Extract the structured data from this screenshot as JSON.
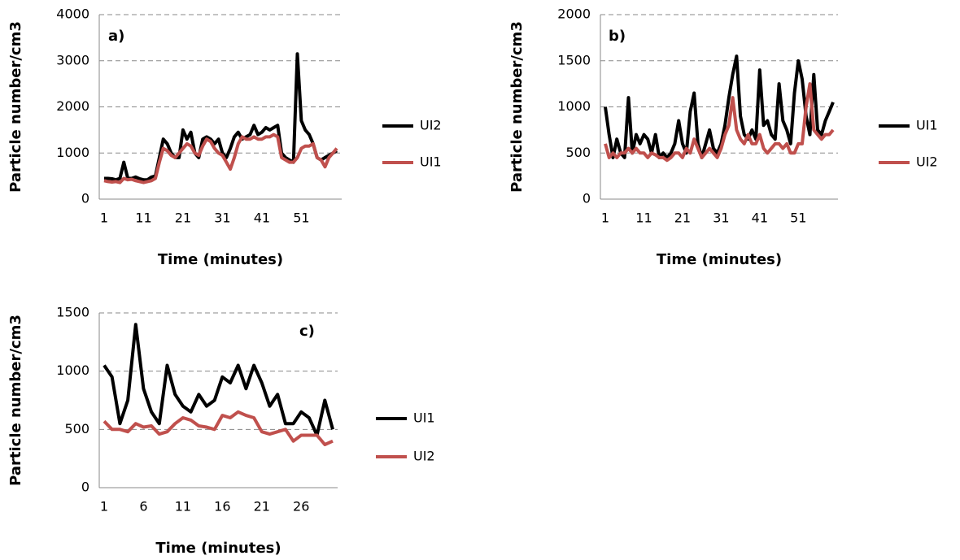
{
  "chart_data": [
    {
      "type": "line",
      "annotation": "a)",
      "xlabel": "Time (minutes)",
      "ylabel": "Particle number/cm3",
      "x": [
        1,
        2,
        3,
        4,
        5,
        6,
        7,
        8,
        9,
        10,
        11,
        12,
        13,
        14,
        15,
        16,
        17,
        18,
        19,
        20,
        21,
        22,
        23,
        24,
        25,
        26,
        27,
        28,
        29,
        30,
        31,
        32,
        33,
        34,
        35,
        36,
        37,
        38,
        39,
        40,
        41,
        42,
        43,
        44,
        45,
        46,
        47,
        48,
        49,
        50,
        51,
        52,
        53,
        54,
        55,
        56,
        57,
        58,
        59,
        60
      ],
      "xlim": [
        1,
        60
      ],
      "xticks": [
        1,
        11,
        21,
        31,
        41,
        51
      ],
      "ylim": [
        0,
        4000
      ],
      "yticks": [
        0,
        1000,
        2000,
        3000,
        4000
      ],
      "grid": true,
      "series": [
        {
          "name": "UI2",
          "color": "#000000",
          "values": [
            450,
            450,
            440,
            420,
            450,
            800,
            450,
            450,
            480,
            440,
            420,
            420,
            480,
            500,
            900,
            1300,
            1200,
            1000,
            900,
            900,
            1500,
            1300,
            1450,
            1000,
            900,
            1300,
            1350,
            1300,
            1200,
            1300,
            1000,
            900,
            1100,
            1350,
            1450,
            1300,
            1350,
            1400,
            1600,
            1400,
            1450,
            1550,
            1500,
            1550,
            1600,
            1000,
            900,
            850,
            800,
            3150,
            1700,
            1500,
            1400,
            1200,
            900,
            850,
            900,
            950,
            1000,
            1050
          ]
        },
        {
          "name": "UI1",
          "color": "#c0504d",
          "values": [
            400,
            380,
            370,
            380,
            360,
            450,
            420,
            430,
            400,
            380,
            360,
            380,
            400,
            450,
            800,
            1100,
            1050,
            950,
            900,
            1000,
            1100,
            1200,
            1150,
            1000,
            950,
            1150,
            1300,
            1250,
            1100,
            1000,
            950,
            800,
            650,
            900,
            1200,
            1350,
            1300,
            1300,
            1350,
            1300,
            1300,
            1350,
            1350,
            1400,
            1350,
            900,
            850,
            800,
            800,
            900,
            1100,
            1150,
            1150,
            1200,
            900,
            850,
            700,
            900,
            1000,
            1100
          ]
        }
      ]
    },
    {
      "type": "line",
      "annotation": "b)",
      "xlabel": "Time (minutes)",
      "ylabel": "Particle number/cm3",
      "x": [
        1,
        2,
        3,
        4,
        5,
        6,
        7,
        8,
        9,
        10,
        11,
        12,
        13,
        14,
        15,
        16,
        17,
        18,
        19,
        20,
        21,
        22,
        23,
        24,
        25,
        26,
        27,
        28,
        29,
        30,
        31,
        32,
        33,
        34,
        35,
        36,
        37,
        38,
        39,
        40,
        41,
        42,
        43,
        44,
        45,
        46,
        47,
        48,
        49,
        50,
        51,
        52,
        53,
        54,
        55,
        56,
        57,
        58,
        59,
        60
      ],
      "xlim": [
        1,
        60
      ],
      "xticks": [
        1,
        11,
        21,
        31,
        41,
        51
      ],
      "ylim": [
        0,
        2000
      ],
      "yticks": [
        0,
        500,
        1000,
        1500,
        2000
      ],
      "grid": true,
      "series": [
        {
          "name": "UI1",
          "color": "#000000",
          "values": [
            1000,
            700,
            450,
            650,
            500,
            450,
            1100,
            500,
            700,
            600,
            700,
            650,
            500,
            700,
            450,
            500,
            450,
            500,
            600,
            850,
            600,
            500,
            950,
            1150,
            600,
            450,
            600,
            750,
            550,
            500,
            600,
            800,
            1100,
            1350,
            1550,
            900,
            700,
            650,
            750,
            650,
            1400,
            800,
            850,
            700,
            650,
            1250,
            850,
            750,
            600,
            1150,
            1500,
            1300,
            900,
            700,
            1350,
            750,
            700,
            850,
            950,
            1050
          ]
        },
        {
          "name": "UI2",
          "color": "#c0504d",
          "values": [
            600,
            450,
            500,
            450,
            500,
            500,
            550,
            500,
            550,
            500,
            500,
            450,
            500,
            480,
            450,
            450,
            420,
            450,
            500,
            500,
            450,
            550,
            500,
            650,
            550,
            450,
            500,
            550,
            500,
            450,
            550,
            700,
            800,
            1100,
            750,
            650,
            600,
            700,
            600,
            600,
            700,
            550,
            500,
            550,
            600,
            600,
            550,
            600,
            500,
            500,
            600,
            600,
            1000,
            1250,
            750,
            700,
            650,
            700,
            700,
            750
          ]
        }
      ]
    },
    {
      "type": "line",
      "annotation": "c)",
      "xlabel": "Time (minutes)",
      "ylabel": "Particle number/cm3",
      "x": [
        1,
        2,
        3,
        4,
        5,
        6,
        7,
        8,
        9,
        10,
        11,
        12,
        13,
        14,
        15,
        16,
        17,
        18,
        19,
        20,
        21,
        22,
        23,
        24,
        25,
        26,
        27,
        28,
        29,
        30
      ],
      "xlim": [
        1,
        30
      ],
      "xticks": [
        1,
        6,
        11,
        16,
        21,
        26
      ],
      "ylim": [
        0,
        1500
      ],
      "yticks": [
        0,
        500,
        1000,
        1500
      ],
      "grid": true,
      "series": [
        {
          "name": "UI1",
          "color": "#000000",
          "values": [
            1050,
            950,
            550,
            750,
            1400,
            850,
            650,
            550,
            1050,
            800,
            700,
            650,
            800,
            700,
            750,
            950,
            900,
            1050,
            850,
            1050,
            900,
            700,
            800,
            550,
            550,
            650,
            600,
            450,
            750,
            500
          ]
        },
        {
          "name": "UI2",
          "color": "#c0504d",
          "values": [
            570,
            500,
            500,
            480,
            550,
            520,
            530,
            460,
            480,
            550,
            600,
            580,
            530,
            520,
            500,
            620,
            600,
            650,
            620,
            600,
            480,
            460,
            480,
            500,
            400,
            450,
            450,
            450,
            370,
            400
          ]
        }
      ]
    }
  ]
}
